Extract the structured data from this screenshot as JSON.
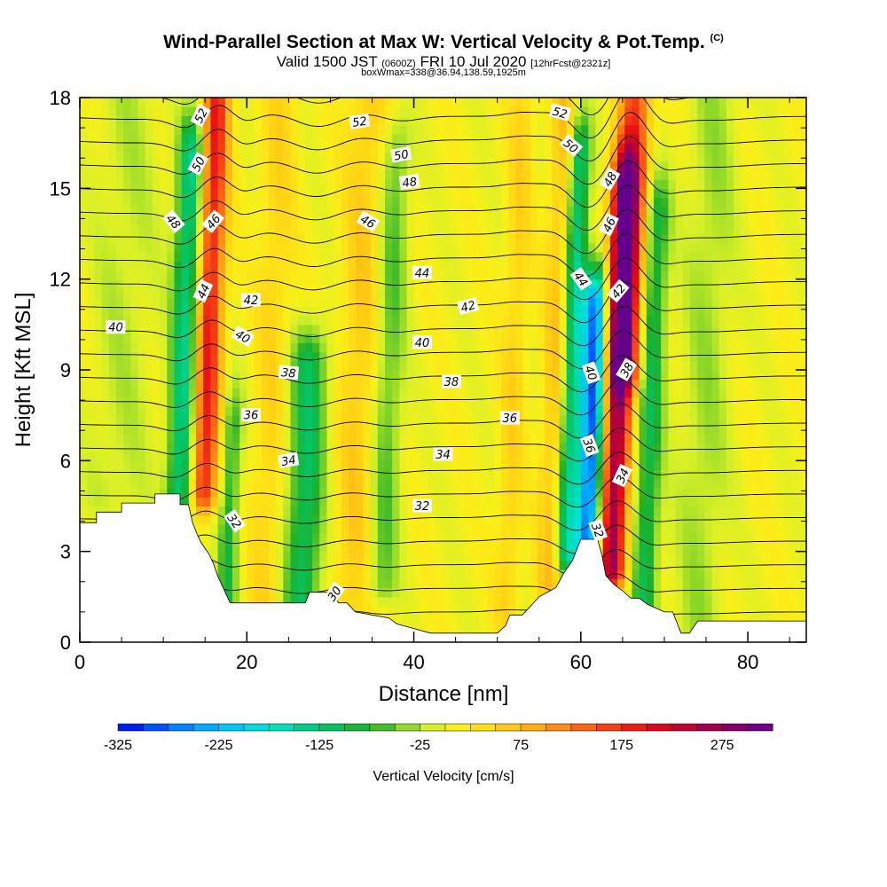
{
  "title": {
    "main": "Wind-Parallel Section at Max W: Vertical Velocity & Pot.Temp.",
    "main_mark": "(C)",
    "valid_prefix": "Valid 1500 JST",
    "valid_zulu": "(0600Z)",
    "valid_date": "FRI 10 Jul 2020",
    "forecast": "[12hrFcst@2321z]",
    "box_info": "boxWmax=338@36.94,138.59,1925m"
  },
  "chart_data": {
    "type": "heatmap",
    "title": "Wind-Parallel Section at Max W: Vertical Velocity & Pot.Temp.",
    "xlabel": "Distance [nm]",
    "ylabel": "Height [Kft MSL]",
    "xlim": [
      0,
      87
    ],
    "ylim": [
      0,
      18
    ],
    "x_ticks": [
      "0",
      "20",
      "40",
      "60",
      "80"
    ],
    "y_ticks": [
      "0",
      "3",
      "6",
      "9",
      "12",
      "15",
      "18"
    ],
    "colorbar": {
      "label": "Vertical Velocity [cm/s]",
      "min": -325,
      "max": 325,
      "step": 25,
      "tick_labels": [
        "-325",
        "-225",
        "-125",
        "-25",
        "75",
        "175",
        "275"
      ]
    },
    "vertical_velocity_bands": [
      {
        "x": 12.5,
        "half_width": 1.6,
        "w": -150,
        "z_min": 4.5,
        "z_max": 16
      },
      {
        "x": 15.3,
        "half_width": 1.6,
        "w": 180,
        "z_min": 5,
        "z_max": 17.5
      },
      {
        "x": 18.5,
        "half_width": 1.2,
        "w": -90,
        "z_min": 1,
        "z_max": 7
      },
      {
        "x": 23.0,
        "half_width": 2.0,
        "w": 40,
        "z_min": 1,
        "z_max": 18
      },
      {
        "x": 27.5,
        "half_width": 2.2,
        "w": -120,
        "z_min": 1,
        "z_max": 9
      },
      {
        "x": 33.5,
        "half_width": 2.5,
        "w": 50,
        "z_min": 1,
        "z_max": 18
      },
      {
        "x": 37.0,
        "half_width": 1.8,
        "w": -70,
        "z_min": 2,
        "z_max": 16
      },
      {
        "x": 52.0,
        "half_width": 1.5,
        "w": 40,
        "z_min": 1,
        "z_max": 18
      },
      {
        "x": 57.0,
        "half_width": 1.5,
        "w": 60,
        "z_min": 2,
        "z_max": 18
      },
      {
        "x": 59.0,
        "half_width": 1.3,
        "w": -150,
        "z_min": 3,
        "z_max": 16
      },
      {
        "x": 61.5,
        "half_width": 1.4,
        "w": -290,
        "z_min": 3,
        "z_max": 11
      },
      {
        "x": 64.5,
        "half_width": 1.6,
        "w": 260,
        "z_min": 2.5,
        "z_max": 15
      },
      {
        "x": 65.5,
        "half_width": 1.8,
        "w": 150,
        "z_min": 9,
        "z_max": 18
      },
      {
        "x": 68.5,
        "half_width": 1.5,
        "w": -110,
        "z_min": 1,
        "z_max": 14
      },
      {
        "x": 75.0,
        "half_width": 3.0,
        "w": -40,
        "z_min": 0,
        "z_max": 18
      },
      {
        "x": 5.0,
        "half_width": 4.0,
        "w": -30,
        "z_min": 5,
        "z_max": 18
      }
    ],
    "terrain": {
      "x": [
        0,
        2,
        2,
        5,
        5,
        9,
        9,
        12,
        12,
        13,
        13.5,
        14,
        14.5,
        15.5,
        16,
        16.5,
        17,
        17.5,
        18,
        19,
        21,
        22,
        26,
        27,
        27.5,
        30,
        31,
        32,
        33,
        35,
        37,
        38,
        40,
        42,
        46,
        49,
        50,
        51,
        51.5,
        53,
        54,
        55,
        57,
        58,
        59,
        60,
        62,
        62.5,
        63,
        64,
        65,
        66,
        67,
        68,
        70,
        71,
        72,
        73,
        74,
        76,
        79,
        82,
        85,
        87
      ],
      "z": [
        3.95,
        3.95,
        4.3,
        4.3,
        4.6,
        4.6,
        4.9,
        4.9,
        4.55,
        4.55,
        3.95,
        3.6,
        3.3,
        2.9,
        2.6,
        2.2,
        1.9,
        1.6,
        1.3,
        1.3,
        1.3,
        1.3,
        1.3,
        1.3,
        1.65,
        1.65,
        1.3,
        1.3,
        1.0,
        0.9,
        0.8,
        0.6,
        0.45,
        0.3,
        0.3,
        0.3,
        0.3,
        0.55,
        0.9,
        0.9,
        1.2,
        1.5,
        1.8,
        2.3,
        2.7,
        3.4,
        3.4,
        2.9,
        2.2,
        1.9,
        1.7,
        1.45,
        1.45,
        1.25,
        1.0,
        1.0,
        0.3,
        0.3,
        0.7,
        0.7,
        0.7,
        0.7,
        0.7,
        0.7
      ]
    },
    "potential_temperature_contours_C": [
      30,
      31,
      32,
      33,
      34,
      35,
      36,
      37,
      38,
      39,
      40,
      41,
      42,
      43,
      44,
      45,
      46,
      47,
      48,
      49,
      50,
      51,
      52
    ],
    "contour_labels": [
      {
        "text": "52",
        "x": 14.5,
        "z": 17.4,
        "rot": -62
      },
      {
        "text": "50",
        "x": 14.2,
        "z": 15.8,
        "rot": -62
      },
      {
        "text": "48",
        "x": 11.2,
        "z": 13.9,
        "rot": 50
      },
      {
        "text": "46",
        "x": 16.0,
        "z": 13.9,
        "rot": -50
      },
      {
        "text": "44",
        "x": 14.8,
        "z": 11.6,
        "rot": -65
      },
      {
        "text": "42",
        "x": 20.5,
        "z": 11.3,
        "rot": 0
      },
      {
        "text": "40",
        "x": 19.5,
        "z": 10.1,
        "rot": 30
      },
      {
        "text": "38",
        "x": 25.0,
        "z": 8.9,
        "rot": 5
      },
      {
        "text": "36",
        "x": 20.5,
        "z": 7.5,
        "rot": 0
      },
      {
        "text": "34",
        "x": 25.0,
        "z": 6.0,
        "rot": -10
      },
      {
        "text": "32",
        "x": 18.5,
        "z": 4.0,
        "rot": 55
      },
      {
        "text": "30",
        "x": 30.5,
        "z": 1.6,
        "rot": -55
      },
      {
        "text": "40",
        "x": 4.3,
        "z": 10.4,
        "rot": 0
      },
      {
        "text": "52",
        "x": 33.5,
        "z": 17.2,
        "rot": -8
      },
      {
        "text": "50",
        "x": 38.5,
        "z": 16.1,
        "rot": -10
      },
      {
        "text": "48",
        "x": 39.5,
        "z": 15.2,
        "rot": -8
      },
      {
        "text": "46",
        "x": 34.5,
        "z": 13.9,
        "rot": 30
      },
      {
        "text": "44",
        "x": 41.0,
        "z": 12.2,
        "rot": 0
      },
      {
        "text": "42",
        "x": 46.5,
        "z": 11.1,
        "rot": -15
      },
      {
        "text": "40",
        "x": 41.0,
        "z": 9.9,
        "rot": 0
      },
      {
        "text": "38",
        "x": 44.5,
        "z": 8.6,
        "rot": 0
      },
      {
        "text": "36",
        "x": 51.5,
        "z": 7.4,
        "rot": 0
      },
      {
        "text": "34",
        "x": 43.5,
        "z": 6.2,
        "rot": 0
      },
      {
        "text": "32",
        "x": 41.0,
        "z": 4.5,
        "rot": 0
      },
      {
        "text": "52",
        "x": 57.5,
        "z": 17.5,
        "rot": 15
      },
      {
        "text": "50",
        "x": 58.8,
        "z": 16.4,
        "rot": 40
      },
      {
        "text": "48",
        "x": 63.5,
        "z": 15.3,
        "rot": -60
      },
      {
        "text": "46",
        "x": 63.4,
        "z": 13.8,
        "rot": -65
      },
      {
        "text": "44",
        "x": 60.0,
        "z": 12.0,
        "rot": 55
      },
      {
        "text": "42",
        "x": 64.5,
        "z": 11.6,
        "rot": -50
      },
      {
        "text": "40",
        "x": 61.2,
        "z": 8.9,
        "rot": 70
      },
      {
        "text": "38",
        "x": 65.5,
        "z": 9.0,
        "rot": -60
      },
      {
        "text": "36",
        "x": 61.0,
        "z": 6.5,
        "rot": 70
      },
      {
        "text": "34",
        "x": 65.0,
        "z": 5.5,
        "rot": -65
      },
      {
        "text": "32",
        "x": 62.0,
        "z": 3.7,
        "rot": 70
      }
    ]
  }
}
